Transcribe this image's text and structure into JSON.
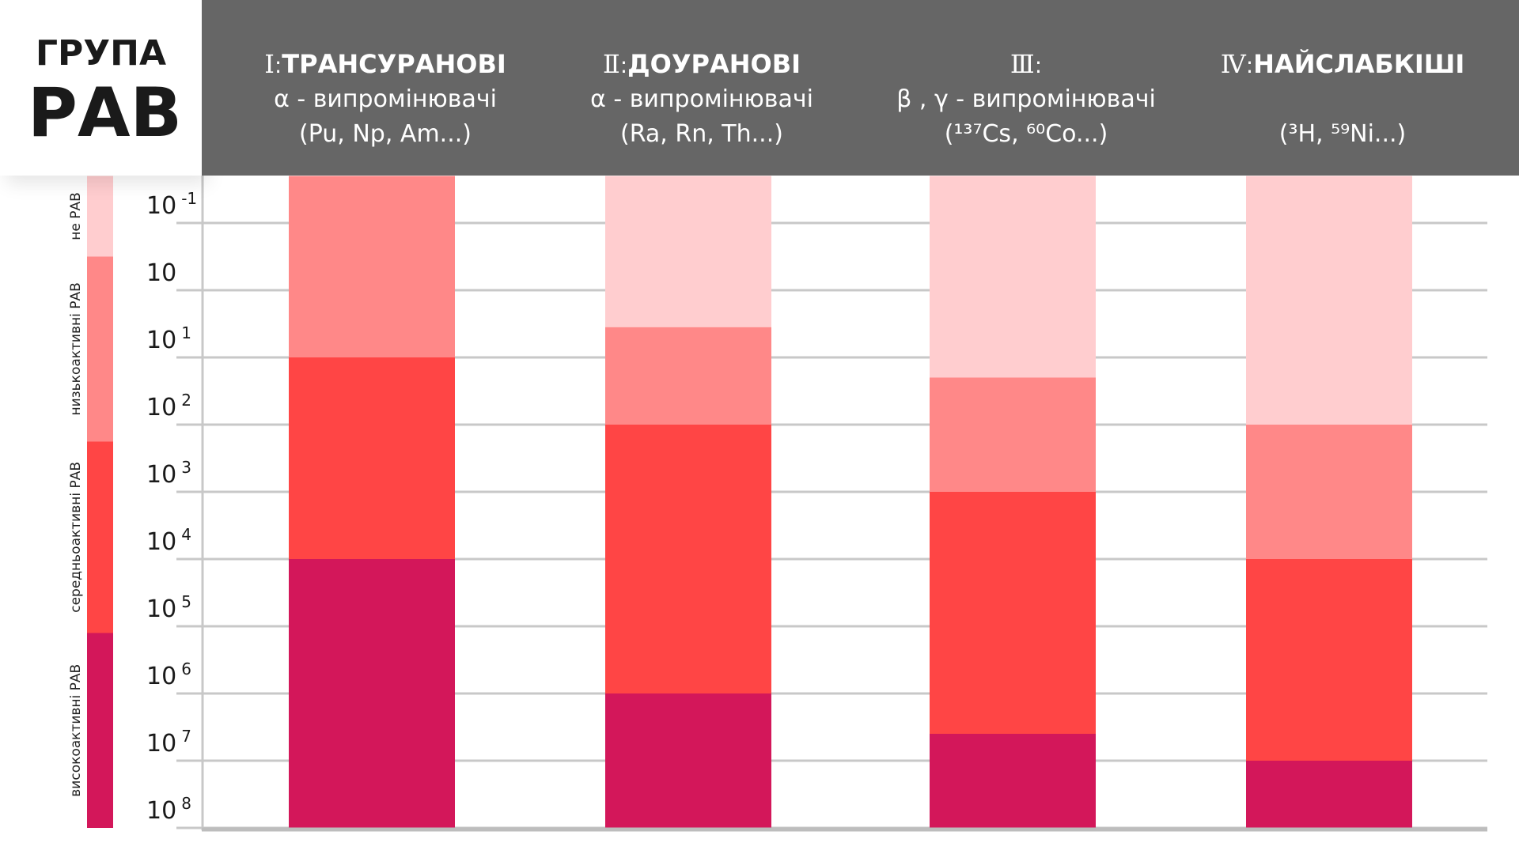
{
  "corner": {
    "line1": "ГРУПА",
    "line2": "РАВ"
  },
  "columns": [
    {
      "numeral": "Ⅰ",
      "name": "ТРАНСУРАНОВІ",
      "line2": "α - випромінювачі",
      "line3": "(Pu, Np, Am...)"
    },
    {
      "numeral": "Ⅱ",
      "name": "ДОУРАНОВІ",
      "line2": "α - випромінювачі",
      "line3": "(Ra, Rn, Th...)"
    },
    {
      "numeral": "Ⅲ",
      "name": "",
      "line2": "β , γ - випромінювачі",
      "line3": "(¹³⁷Cs, ⁶⁰Co...)"
    },
    {
      "numeral": "Ⅳ",
      "name": "НАЙСЛАБКІШІ",
      "line2": "",
      "line3": "(³H, ⁵⁹Ni...)"
    }
  ],
  "chart_data": {
    "type": "bar",
    "stacked": true,
    "y_tick_labels": [
      {
        "base": "10",
        "exp": "-1"
      },
      {
        "base": "10",
        "exp": ""
      },
      {
        "base": "10",
        "exp": "1"
      },
      {
        "base": "10",
        "exp": "2"
      },
      {
        "base": "10",
        "exp": "3"
      },
      {
        "base": "10",
        "exp": "4"
      },
      {
        "base": "10",
        "exp": "5"
      },
      {
        "base": "10",
        "exp": "6"
      },
      {
        "base": "10",
        "exp": "7"
      },
      {
        "base": "10",
        "exp": "8"
      }
    ],
    "categories": [
      "Ⅰ",
      "Ⅱ",
      "Ⅲ",
      "Ⅳ"
    ],
    "class_colors": {
      "не РАВ": "#ffcdcf",
      "низькоактивні РАВ": "#ff8888",
      "середньоактивні РАВ": "#ff4545",
      "високоактивні РАВ": "#d3175a"
    },
    "legend": [
      {
        "label": "не РАВ",
        "from": -1.7,
        "to": -0.5
      },
      {
        "label": "низькоактивні РАВ",
        "from": -0.5,
        "to": 2.25
      },
      {
        "label": "середньоактивні РАВ",
        "from": 2.25,
        "to": 5.1
      },
      {
        "label": "високоактивні РАВ",
        "from": 5.1,
        "to": 8.0
      }
    ],
    "bars": [
      {
        "segments": [
          {
            "class": "низькоактивні РАВ",
            "from": -1.7,
            "to": 1.0
          },
          {
            "class": "середньоактивні РАВ",
            "from": 1.0,
            "to": 4.0
          },
          {
            "class": "високоактивні РАВ",
            "from": 4.0,
            "to": 8.0
          }
        ]
      },
      {
        "segments": [
          {
            "class": "не РАВ",
            "from": -1.7,
            "to": 0.55
          },
          {
            "class": "низькоактивні РАВ",
            "from": 0.55,
            "to": 2.0
          },
          {
            "class": "середньоактивні РАВ",
            "from": 2.0,
            "to": 6.0
          },
          {
            "class": "високоактивні РАВ",
            "from": 6.0,
            "to": 8.0
          }
        ]
      },
      {
        "segments": [
          {
            "class": "не РАВ",
            "from": -1.7,
            "to": 1.3
          },
          {
            "class": "низькоактивні РАВ",
            "from": 1.3,
            "to": 3.0
          },
          {
            "class": "середньоактивні РАВ",
            "from": 3.0,
            "to": 6.6
          },
          {
            "class": "високоактивні РАВ",
            "from": 6.6,
            "to": 8.0
          }
        ]
      },
      {
        "segments": [
          {
            "class": "не РАВ",
            "from": -1.7,
            "to": 2.0
          },
          {
            "class": "низькоактивні РАВ",
            "from": 2.0,
            "to": 4.0
          },
          {
            "class": "середньоактивні РАВ",
            "from": 4.0,
            "to": 7.0
          },
          {
            "class": "високоактивні РАВ",
            "from": 7.0,
            "to": 8.0
          }
        ]
      }
    ],
    "grid": true,
    "legend_position": "left"
  }
}
